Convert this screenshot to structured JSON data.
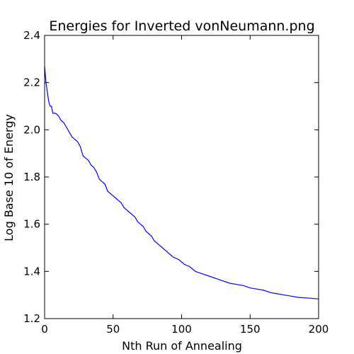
{
  "chart_data": {
    "type": "line",
    "title": "Energies for Inverted vonNeumann.png",
    "xlabel": "Nth Run of Annealing",
    "ylabel": "Log Base 10 of Energy",
    "xlim": [
      0,
      200
    ],
    "ylim": [
      1.2,
      2.4
    ],
    "xticks": [
      0,
      50,
      100,
      150,
      200
    ],
    "yticks": [
      1.2,
      1.4,
      1.6,
      1.8,
      2.0,
      2.2,
      2.4
    ],
    "xtick_labels": [
      "0",
      "50",
      "100",
      "150",
      "200"
    ],
    "ytick_labels": [
      "1.2",
      "1.4",
      "1.6",
      "1.8",
      "2.0",
      "2.2",
      "2.4"
    ],
    "grid": false,
    "series": [
      {
        "color": "#0000ff",
        "x": [
          0,
          1,
          2,
          3,
          4,
          5,
          6,
          8,
          10,
          12,
          14,
          16,
          18,
          20,
          22,
          24,
          26,
          28,
          30,
          32,
          34,
          36,
          38,
          40,
          42,
          44,
          46,
          48,
          50,
          52,
          54,
          56,
          58,
          60,
          62,
          64,
          66,
          68,
          70,
          72,
          74,
          76,
          78,
          80,
          82,
          84,
          86,
          88,
          90,
          92,
          94,
          96,
          98,
          100,
          102,
          104,
          106,
          108,
          110,
          115,
          120,
          125,
          130,
          135,
          140,
          145,
          150,
          155,
          160,
          165,
          170,
          175,
          180,
          185,
          190,
          195,
          200
        ],
        "y": [
          2.27,
          2.2,
          2.16,
          2.12,
          2.1,
          2.1,
          2.07,
          2.07,
          2.06,
          2.04,
          2.03,
          2.01,
          1.99,
          1.97,
          1.96,
          1.95,
          1.93,
          1.89,
          1.88,
          1.87,
          1.85,
          1.84,
          1.82,
          1.79,
          1.78,
          1.77,
          1.74,
          1.73,
          1.72,
          1.71,
          1.7,
          1.69,
          1.67,
          1.66,
          1.65,
          1.64,
          1.63,
          1.61,
          1.6,
          1.59,
          1.57,
          1.56,
          1.55,
          1.53,
          1.52,
          1.51,
          1.5,
          1.49,
          1.48,
          1.47,
          1.46,
          1.455,
          1.45,
          1.44,
          1.43,
          1.425,
          1.42,
          1.41,
          1.4,
          1.39,
          1.38,
          1.37,
          1.36,
          1.35,
          1.345,
          1.34,
          1.33,
          1.325,
          1.32,
          1.31,
          1.305,
          1.3,
          1.295,
          1.29,
          1.288,
          1.286,
          1.283
        ]
      }
    ]
  }
}
